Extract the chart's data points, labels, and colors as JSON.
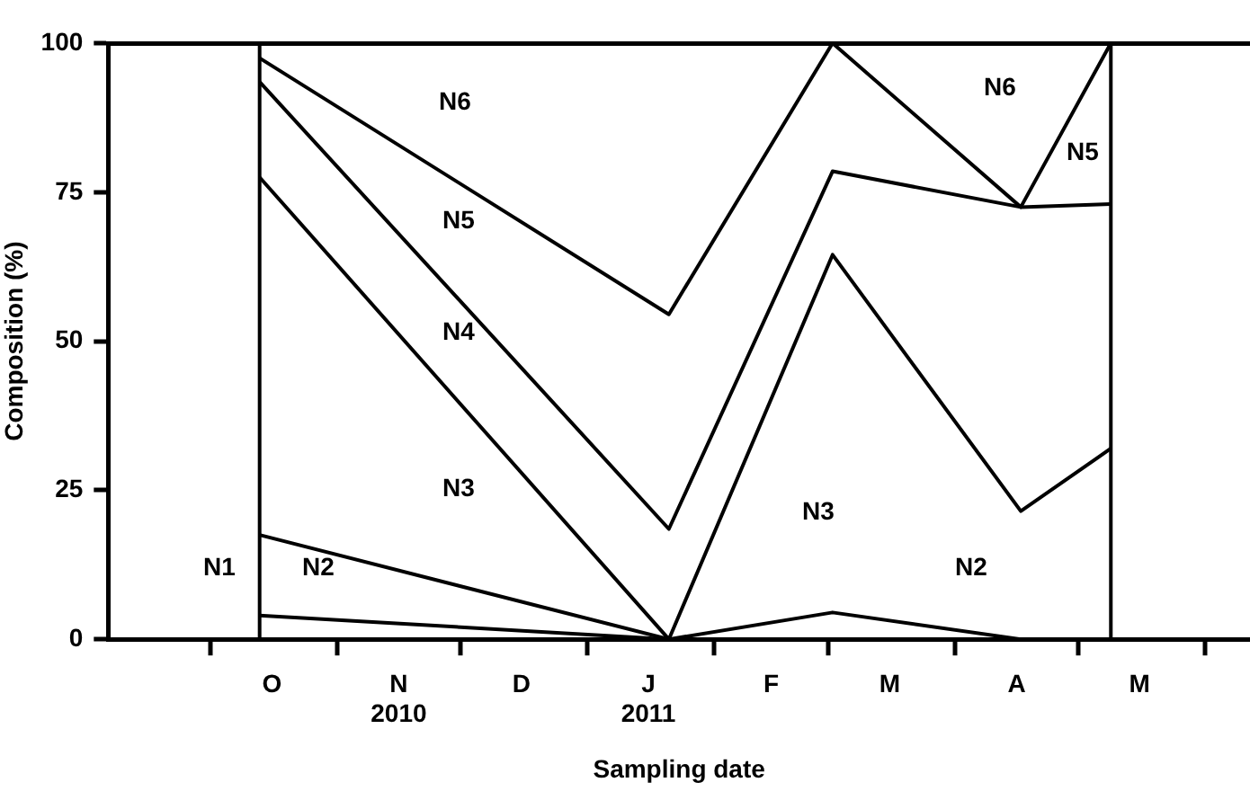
{
  "chart_data": {
    "type": "line",
    "xlabel": "Sampling date",
    "ylabel": "Composition (%)",
    "x": [
      "2010-10-13",
      "2011-01-21",
      "2011-03-02",
      "2011-04-17",
      "2011-05-09"
    ],
    "series": [
      {
        "color": "#000000",
        "values": [
          4,
          0,
          null,
          null,
          null
        ]
      },
      {
        "color": "#000000",
        "values": [
          17.5,
          0,
          4.5,
          0,
          null
        ]
      },
      {
        "color": "#000000",
        "values": [
          77.5,
          0,
          64.5,
          21.5,
          32
        ]
      },
      {
        "color": "#000000",
        "values": [
          93.5,
          18.5,
          78.5,
          72.5,
          73
        ]
      },
      {
        "color": "#000000",
        "values": [
          97.5,
          54.5,
          100,
          72.5,
          100
        ]
      }
    ],
    "xlim": [
      "2010-09-06",
      "2011-06-12"
    ],
    "xticks": [
      {
        "value": "2010-10-01",
        "label": null
      },
      {
        "value": "2010-10-16",
        "label": "O"
      },
      {
        "value": "2010-11-01",
        "label": null
      },
      {
        "value": "2010-11-16",
        "label": "N\n2010"
      },
      {
        "value": "2010-12-01",
        "label": null
      },
      {
        "value": "2010-12-16",
        "label": "D"
      },
      {
        "value": "2011-01-01",
        "label": null
      },
      {
        "value": "2011-01-16",
        "label": "J\n2011"
      },
      {
        "value": "2011-02-01",
        "label": null
      },
      {
        "value": "2011-02-15",
        "label": "F"
      },
      {
        "value": "2011-03-01",
        "label": null
      },
      {
        "value": "2011-03-16",
        "label": "M"
      },
      {
        "value": "2011-04-01",
        "label": null
      },
      {
        "value": "2011-04-16",
        "label": "A"
      },
      {
        "value": "2011-05-01",
        "label": null
      },
      {
        "value": "2011-05-16",
        "label": "M"
      },
      {
        "value": "2011-06-01",
        "label": null
      }
    ],
    "ylim": [
      0,
      100
    ],
    "yticks": [
      0,
      25,
      50,
      75,
      100
    ],
    "grid": false,
    "legend": false,
    "ref_lines": [
      {
        "axis": "x",
        "value": "2010-10-13"
      },
      {
        "axis": "x",
        "value": "2011-05-09"
      }
    ],
    "annotations": [
      "N6",
      "N5",
      "N4",
      "N3",
      "N1",
      "N2",
      "N3",
      "N2",
      "N6",
      "N5"
    ]
  }
}
